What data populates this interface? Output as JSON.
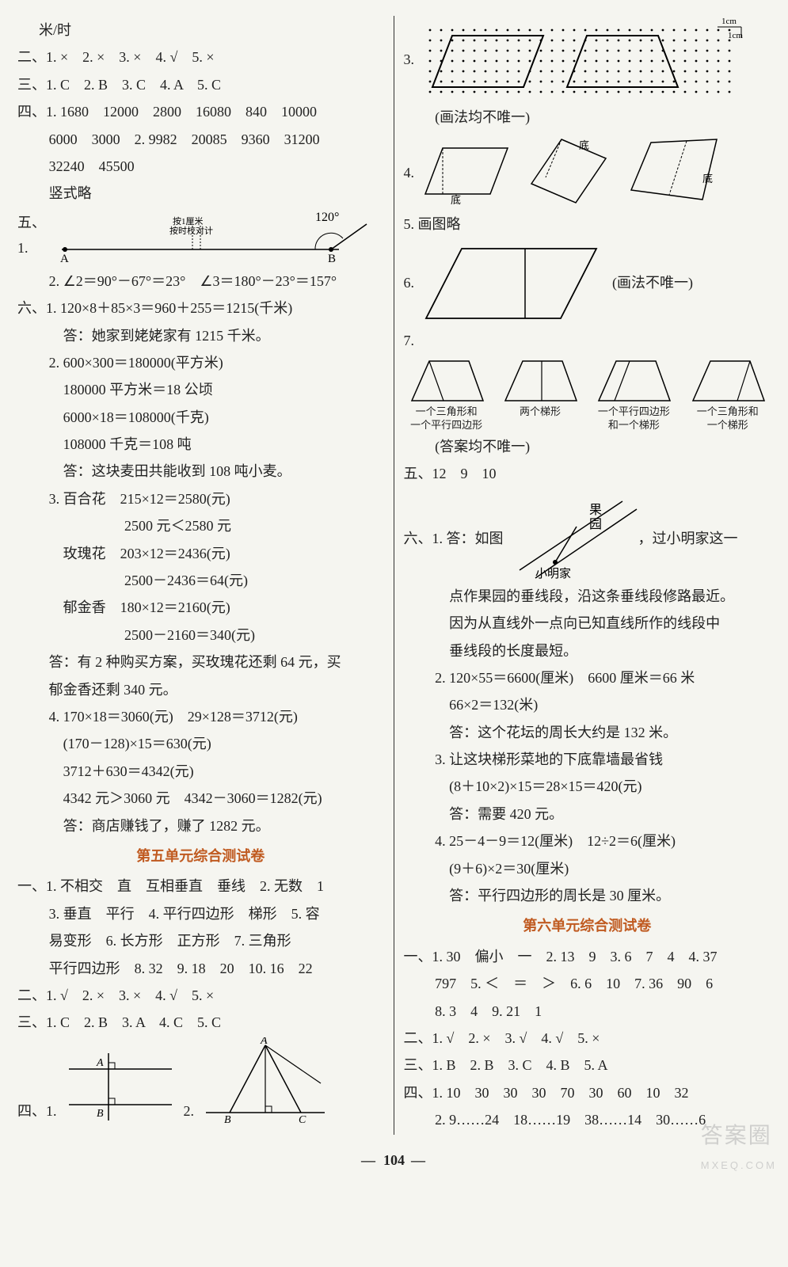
{
  "left": {
    "l1": "米/时",
    "l2": "二、1. ×　2. ×　3. ×　4. √　5. ×",
    "l3": "三、1. C　2. B　3. C　4. A　5. C",
    "l4": "四、1. 1680　12000　2800　16080　840　10000",
    "l5": "6000　3000　2. 9982　20085　9360　31200",
    "l6": "32240　45500",
    "l7": "竖式略",
    "wu": "五、1.",
    "angleLabel": "120°",
    "ptA": "A",
    "ptB": "B",
    "midLabel1": "按1厘米",
    "midLabel2": "按时校对计",
    "l8": "2. ∠2＝90°－67°＝23°　∠3＝180°－23°＝157°",
    "l9": "六、1. 120×8＋85×3＝960＋255＝1215(千米)",
    "l10": "答：她家到姥姥家有 1215 千米。",
    "l11": "2. 600×300＝180000(平方米)",
    "l12": "180000 平方米＝18 公顷",
    "l13": "6000×18＝108000(千克)",
    "l14": "108000 千克＝108 吨",
    "l15": "答：这块麦田共能收到 108 吨小麦。",
    "l16": "3. 百合花　215×12＝2580(元)",
    "l17": "2500 元＜2580 元",
    "l18": "玫瑰花　203×12＝2436(元)",
    "l19": "2500－2436＝64(元)",
    "l20": "郁金香　180×12＝2160(元)",
    "l21": "2500－2160＝340(元)",
    "l22": "答：有 2 种购买方案，买玫瑰花还剩 64 元，买",
    "l22b": "郁金香还剩 340 元。",
    "l23": "4. 170×18＝3060(元)　29×128＝3712(元)",
    "l24": "(170－128)×15＝630(元)",
    "l25": "3712＋630＝4342(元)",
    "l26": "4342 元＞3060 元　4342－3060＝1282(元)",
    "l27": "答：商店赚钱了，赚了 1282 元。",
    "heading5": "第五单元综合测试卷",
    "u5l1": "一、1. 不相交　直　互相垂直　垂线　2. 无数　1",
    "u5l2": "3. 垂直　平行　4. 平行四边形　梯形　5. 容",
    "u5l3": "易变形　6. 长方形　正方形　7. 三角形",
    "u5l4": "平行四边形　8. 32　9. 18　20　10. 16　22",
    "u5l5": "二、1. √　2. ×　3. ×　4. √　5. ×",
    "u5l6": "三、1. C　2. B　3. A　4. C　5. C",
    "u5q4": "四、1.",
    "u5q4b": "2.",
    "fig1": {
      "ptA": "A",
      "ptB": "B"
    },
    "fig2": {
      "ptA": "A",
      "ptB": "B",
      "ptC": "C"
    }
  },
  "right": {
    "q3": "3.",
    "q3note": "(画法均不唯一)",
    "cmLabel": "1cm",
    "q4": "4.",
    "q4b1": "底",
    "q4b2": "底",
    "q4b3": "底",
    "q5": "5. 画图略",
    "q6": "6.",
    "q6note": "(画法不唯一)",
    "q7": "7.",
    "q7c1a": "一个三角形和",
    "q7c1b": "一个平行四边形",
    "q7c2": "两个梯形",
    "q7c3a": "一个平行四边形",
    "q7c3b": "和一个梯形",
    "q7c4a": "一个三角形和",
    "q7c4b": "一个梯形",
    "q7note": "(答案均不唯一)",
    "r5": "五、12　9　10",
    "r6pre": "六、1. 答：如图",
    "r6post": "，过小明家这一",
    "mapLabel1": "果",
    "mapLabel2": "园",
    "mapLabel3": "小明家",
    "r6b": "点作果园的垂线段，沿这条垂线段修路最近。",
    "r6c": "因为从直线外一点向已知直线所作的线段中",
    "r6d": "垂线段的长度最短。",
    "r7a": "2. 120×55＝6600(厘米)　6600 厘米＝66 米",
    "r7b": "66×2＝132(米)",
    "r7c": "答：这个花坛的周长大约是 132 米。",
    "r8a": "3. 让这块梯形菜地的下底靠墙最省钱",
    "r8b": "(8＋10×2)×15＝28×15＝420(元)",
    "r8c": "答：需要 420 元。",
    "r9a": "4. 25－4－9＝12(厘米)　12÷2＝6(厘米)",
    "r9b": "(9＋6)×2＝30(厘米)",
    "r9c": "答：平行四边形的周长是 30 厘米。",
    "heading6": "第六单元综合测试卷",
    "u6l1": "一、1. 30　偏小　一　2. 13　9　3. 6　7　4　4. 37",
    "u6l2": "797　5. ＜　＝　＞　6. 6　10　7. 36　90　6",
    "u6l3": "8. 3　4　9. 21　1",
    "u6l4": "二、1. √　2. ×　3. √　4. √　5. ×",
    "u6l5": "三、1. B　2. B　3. C　4. B　5. A",
    "u6l6": "四、1. 10　30　30　30　70　30　60　10　32",
    "u6l7": "2. 9……24　18……19　38……14　30……6"
  },
  "pageNumber": "104",
  "watermark": {
    "big": "答案圈",
    "small": "MXEQ.COM"
  },
  "colors": {
    "heading": "#c05a20",
    "text": "#222222",
    "stroke": "#000000",
    "bg": "#f5f5f0"
  }
}
